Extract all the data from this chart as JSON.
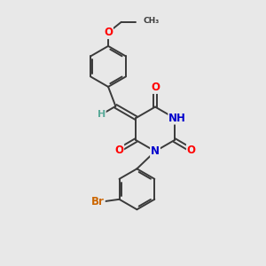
{
  "bg_color": "#e8e8e8",
  "bond_color": "#3a3a3a",
  "bond_width": 1.4,
  "atom_colors": {
    "O": "#ff0000",
    "N": "#0000cc",
    "Br": "#cc6600",
    "C": "#3a3a3a",
    "H": "#5aaa99"
  },
  "font_size_atom": 8.5,
  "font_size_h": 8.0
}
